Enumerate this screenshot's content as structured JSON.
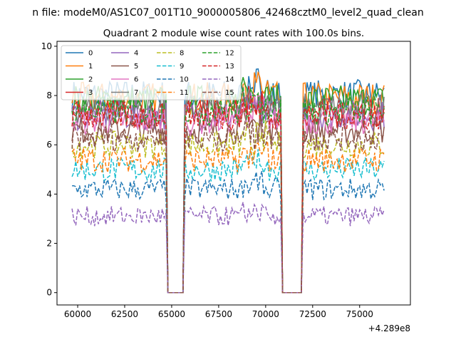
{
  "chart_data": {
    "type": "line",
    "suptitle": "n file: modeM0/AS1C07_001T10_9000005806_42468cztM0_level2_quad_clean",
    "title": "Quadrant 2 module wise count rates with 100.0s bins.",
    "xlabel": "",
    "ylabel": "",
    "offset_text": "+4.289e8",
    "xlim": [
      58900,
      77700
    ],
    "ylim": [
      -0.5,
      10.2
    ],
    "x_ticks": [
      60000,
      62500,
      65000,
      67500,
      70000,
      72500,
      75000
    ],
    "y_ticks": [
      0,
      2,
      4,
      6,
      8,
      10
    ],
    "legend_position": "upper-left",
    "legend_columns": 4,
    "x_start": 59700,
    "x_step": 100,
    "x_end": 76300,
    "gaps": [
      [
        64700,
        65700
      ],
      [
        70800,
        72000
      ]
    ],
    "grid": false,
    "series": [
      {
        "name": "0",
        "color": "#1f77b4",
        "dash": "solid",
        "level": 8.0
      },
      {
        "name": "1",
        "color": "#ff7f0e",
        "dash": "solid",
        "level": 7.9
      },
      {
        "name": "2",
        "color": "#2ca02c",
        "dash": "solid",
        "level": 7.8
      },
      {
        "name": "3",
        "color": "#d62728",
        "dash": "solid",
        "level": 7.3
      },
      {
        "name": "4",
        "color": "#9467bd",
        "dash": "solid",
        "level": 7.2
      },
      {
        "name": "5",
        "color": "#8c564b",
        "dash": "solid",
        "level": 6.6
      },
      {
        "name": "6",
        "color": "#e377c2",
        "dash": "solid",
        "level": 7.0
      },
      {
        "name": "7",
        "color": "#7f7f7f",
        "dash": "solid",
        "level": 7.5
      },
      {
        "name": "8",
        "color": "#bcbd22",
        "dash": "dashed",
        "level": 6.0
      },
      {
        "name": "9",
        "color": "#17becf",
        "dash": "dashed",
        "level": 5.0
      },
      {
        "name": "10",
        "color": "#1f77b4",
        "dash": "dashed",
        "level": 4.2
      },
      {
        "name": "11",
        "color": "#ff7f0e",
        "dash": "dashed",
        "level": 5.4
      },
      {
        "name": "12",
        "color": "#2ca02c",
        "dash": "dashed",
        "level": 7.4
      },
      {
        "name": "13",
        "color": "#d62728",
        "dash": "dashed",
        "level": 7.2
      },
      {
        "name": "14",
        "color": "#9467bd",
        "dash": "dashed",
        "level": 3.1
      },
      {
        "name": "15",
        "color": "#8c564b",
        "dash": "dashed",
        "level": 6.3
      }
    ]
  }
}
